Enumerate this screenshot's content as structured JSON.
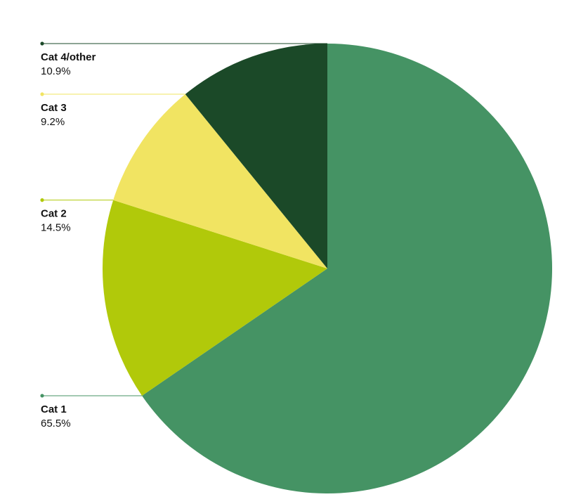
{
  "chart_data": {
    "type": "pie",
    "title": "",
    "slices": [
      {
        "label": "Cat 1",
        "value": 65.5,
        "value_label": "65.5%",
        "color": "#459364"
      },
      {
        "label": "Cat 2",
        "value": 14.5,
        "value_label": "14.5%",
        "color": "#b1c90a"
      },
      {
        "label": "Cat 3",
        "value": 9.2,
        "value_label": "9.2%",
        "color": "#f1e462"
      },
      {
        "label": "Cat 4/other",
        "value": 10.9,
        "value_label": "10.9%",
        "color": "#1b4928"
      }
    ],
    "start_angle": "12 o'clock",
    "direction": "clockwise",
    "labels_position": "left, with leader lines"
  }
}
